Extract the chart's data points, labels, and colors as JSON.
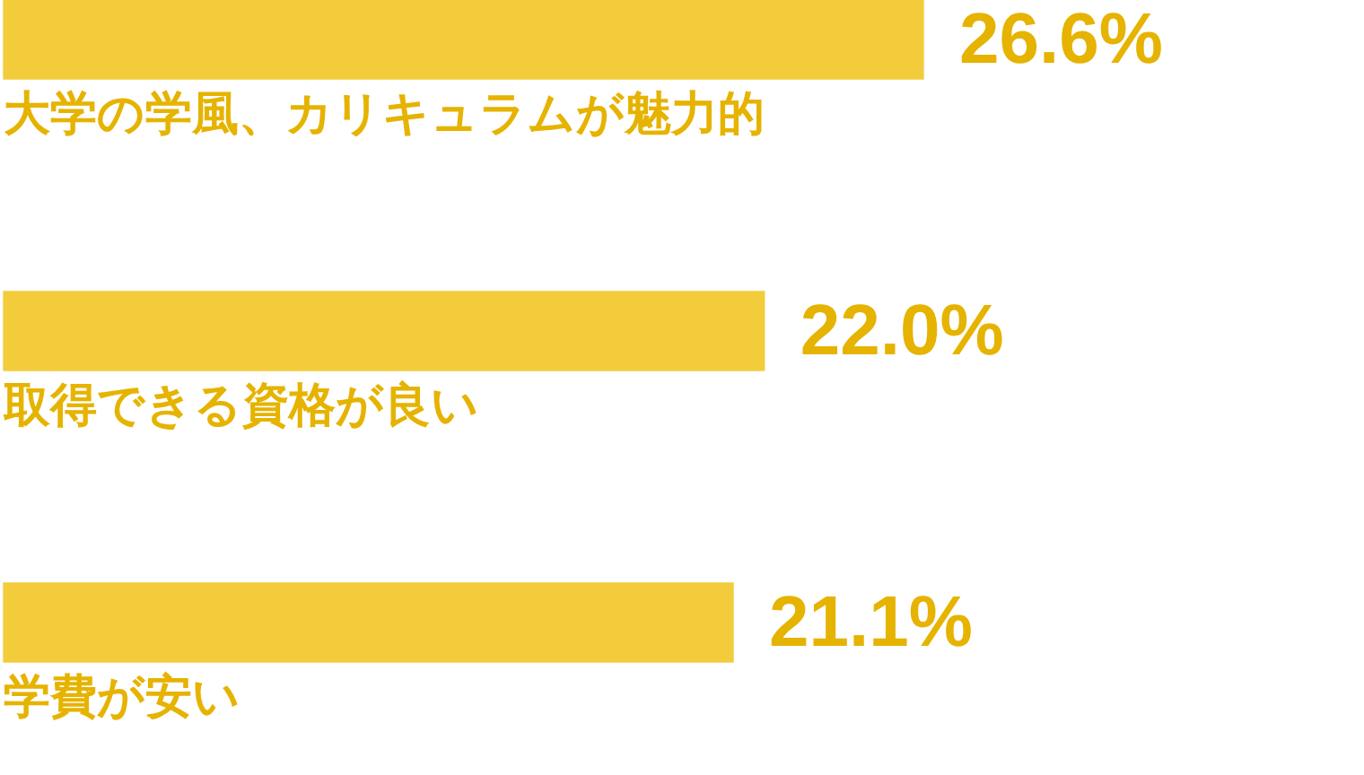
{
  "chart_data": {
    "type": "bar",
    "orientation": "horizontal",
    "categories": [
      "大学の学風、カリキュラムが魅力的",
      "取得できる資格が良い",
      "学費が安い"
    ],
    "values": [
      26.6,
      22.0,
      21.1
    ],
    "value_labels": [
      "26.6%",
      "22.0%",
      "21.1%"
    ],
    "color": "#f3cc3c"
  }
}
